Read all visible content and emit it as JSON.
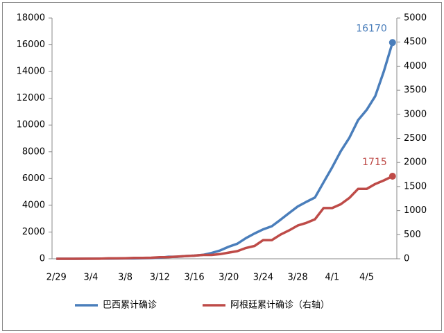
{
  "chart_data": {
    "type": "line",
    "categories": [
      "2/29",
      null,
      null,
      null,
      "3/4",
      null,
      null,
      null,
      "3/8",
      null,
      null,
      null,
      "3/12",
      null,
      null,
      null,
      "3/16",
      null,
      null,
      null,
      "3/20",
      null,
      null,
      null,
      "3/24",
      null,
      null,
      null,
      "3/28",
      null,
      null,
      null,
      "4/1",
      null,
      null,
      null,
      "4/5",
      null,
      null,
      null
    ],
    "series": [
      {
        "name": "巴西累计确诊",
        "color": "#4a7ebb",
        "axis": "y",
        "values": [
          2,
          2,
          2,
          2,
          3,
          8,
          13,
          19,
          25,
          25,
          34,
          52,
          77,
          151,
          151,
          200,
          234,
          291,
          428,
          621,
          904,
          1128,
          1546,
          1891,
          2201,
          2433,
          2915,
          3417,
          3904,
          4256,
          4579,
          5717,
          6836,
          8044,
          9056,
          10360,
          11130,
          12161,
          14034,
          16170
        ]
      },
      {
        "name": "阿根廷累计确诊（右轴）",
        "color": "#be4b48",
        "axis": "y2",
        "values": [
          0,
          0,
          0,
          1,
          1,
          2,
          8,
          9,
          12,
          17,
          19,
          21,
          31,
          34,
          45,
          56,
          65,
          79,
          79,
          97,
          128,
          158,
          225,
          266,
          387,
          387,
          502,
          589,
          690,
          745,
          820,
          1054,
          1054,
          1133,
          1265,
          1451,
          1451,
          1554,
          1628,
          1715
        ]
      }
    ],
    "ylim": [
      0,
      18000
    ],
    "yticks": [
      0,
      2000,
      4000,
      6000,
      8000,
      10000,
      12000,
      14000,
      16000,
      18000
    ],
    "y2lim": [
      0,
      5000
    ],
    "y2ticks": [
      0,
      500,
      1000,
      1500,
      2000,
      2500,
      3000,
      3500,
      4000,
      4500,
      5000
    ],
    "grid": false,
    "legend": "bottom"
  }
}
